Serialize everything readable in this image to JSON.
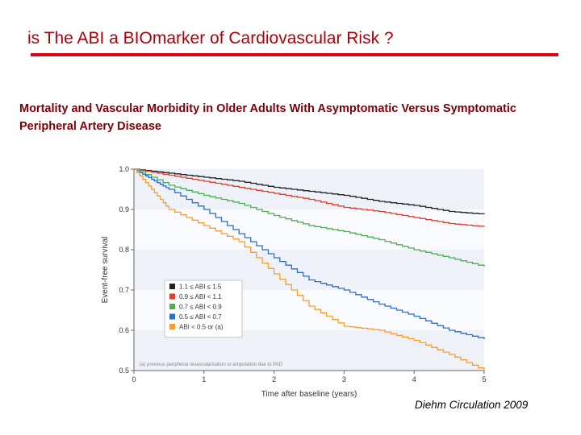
{
  "slide": {
    "title": "is The ABI a BIOmarker of  Cardiovascular Risk ?",
    "subtitle": "Mortality and Vascular Morbidity in Older Adults With Asymptomatic Versus Symptomatic Peripheral Artery Disease",
    "citation": "Diehm Circulation 2009",
    "accent_color": "#e0001a"
  },
  "chart_data": {
    "type": "line",
    "title": "",
    "xlabel": "Time after baseline (years)",
    "ylabel": "Event-free survival",
    "xlim": [
      0,
      5
    ],
    "ylim": [
      0.5,
      1.0
    ],
    "xticks": [
      0,
      1,
      2,
      3,
      4,
      5
    ],
    "yticks": [
      0.5,
      0.6,
      0.7,
      0.8,
      0.9,
      1.0
    ],
    "ytick_labels": [
      "0.5",
      "0.6",
      "0.7",
      "0.8",
      "0.9",
      "1.0"
    ],
    "legend_position": "lower-left",
    "footnote": "(a) previous peripheral revascularisation or amputation due to PAD",
    "series": [
      {
        "name": "1.1 ≤ ABI ≤ 1.5",
        "color": "#222222",
        "x": [
          0,
          0.5,
          1,
          1.5,
          2,
          2.5,
          3,
          3.5,
          4,
          4.5,
          5
        ],
        "y": [
          1.0,
          0.99,
          0.98,
          0.97,
          0.955,
          0.945,
          0.935,
          0.92,
          0.91,
          0.895,
          0.888
        ]
      },
      {
        "name": "0.9 ≤ ABI < 1.1",
        "color": "#e0402a",
        "x": [
          0,
          0.5,
          1,
          1.5,
          2,
          2.5,
          3,
          3.5,
          4,
          4.5,
          5
        ],
        "y": [
          1.0,
          0.985,
          0.97,
          0.955,
          0.94,
          0.925,
          0.905,
          0.895,
          0.88,
          0.865,
          0.857
        ]
      },
      {
        "name": "0.7 ≤ ABI < 0.9",
        "color": "#4caf50",
        "x": [
          0,
          0.5,
          1,
          1.5,
          2,
          2.5,
          3,
          3.5,
          4,
          4.5,
          5
        ],
        "y": [
          1.0,
          0.96,
          0.935,
          0.915,
          0.885,
          0.86,
          0.845,
          0.825,
          0.8,
          0.78,
          0.758
        ]
      },
      {
        "name": "0.5 ≤ ABI < 0.7",
        "color": "#2a6fc9",
        "x": [
          0,
          0.25,
          0.5,
          1,
          1.5,
          2,
          2.5,
          3,
          3.5,
          4,
          4.5,
          5
        ],
        "y": [
          1.0,
          0.975,
          0.95,
          0.9,
          0.84,
          0.78,
          0.725,
          0.7,
          0.665,
          0.635,
          0.6,
          0.578
        ]
      },
      {
        "name": "ABI < 0.5 or (a)",
        "color": "#f4a030",
        "x": [
          0,
          0.25,
          0.5,
          1,
          1.5,
          2,
          2.5,
          3,
          3.5,
          4,
          4.5,
          5
        ],
        "y": [
          1.0,
          0.95,
          0.9,
          0.86,
          0.82,
          0.74,
          0.66,
          0.61,
          0.6,
          0.575,
          0.54,
          0.5
        ]
      }
    ]
  }
}
